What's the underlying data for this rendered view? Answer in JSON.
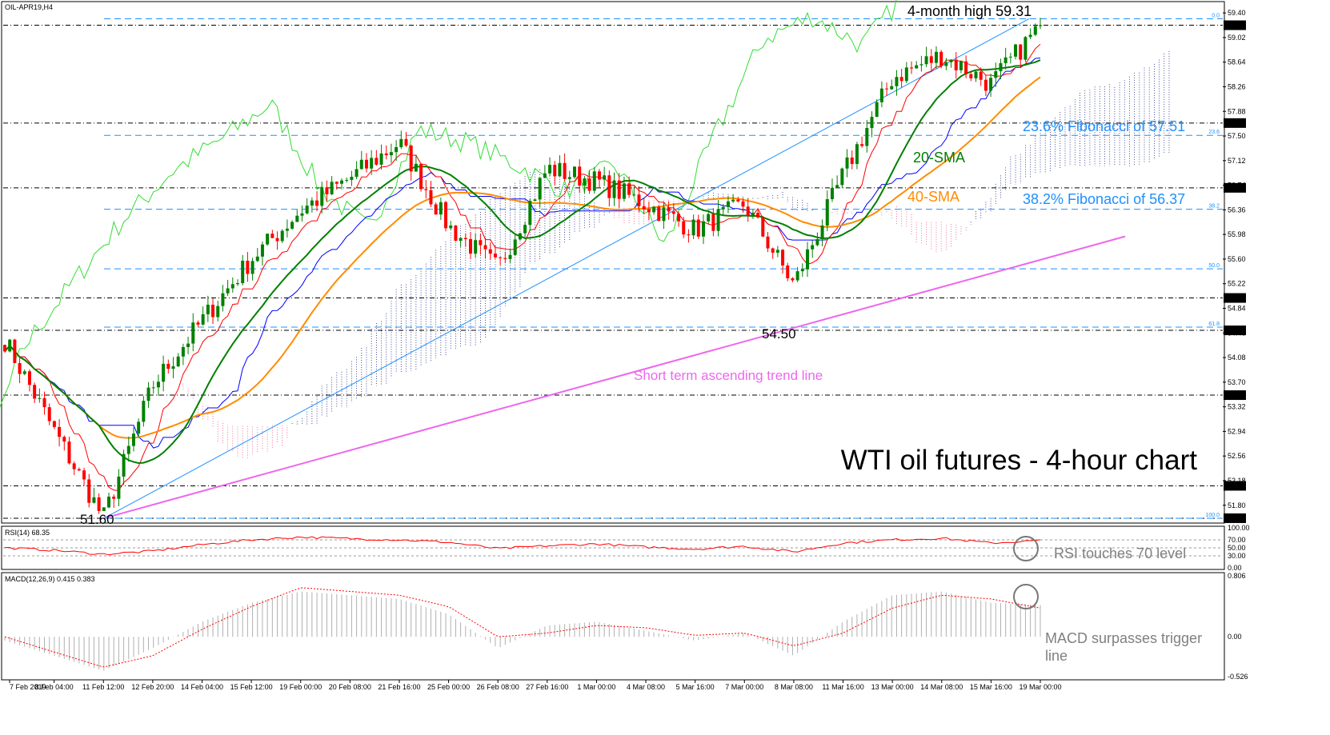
{
  "chart_data": {
    "type": "candlestick",
    "symbol": "OIL-APR19,H4",
    "title": "WTI oil futures - 4-hour chart",
    "y_ticks": [
      "59.40",
      "59.02",
      "58.64",
      "58.26",
      "57.88",
      "57.50",
      "57.12",
      "56.74",
      "56.36",
      "55.98",
      "55.60",
      "55.22",
      "54.84",
      "54.46",
      "54.08",
      "53.70",
      "53.32",
      "52.94",
      "52.56",
      "52.18",
      "51.80"
    ],
    "ylim": [
      51.55,
      59.55
    ],
    "x_ticks": [
      "7 Feb 2019",
      "8 Feb 04:00",
      "11 Feb 12:00",
      "12 Feb 20:00",
      "14 Feb 04:00",
      "15 Feb 12:00",
      "19 Feb 00:00",
      "20 Feb 08:00",
      "21 Feb 16:00",
      "25 Feb 00:00",
      "26 Feb 08:00",
      "27 Feb 16:00",
      "1 Mar 00:00",
      "4 Mar 08:00",
      "5 Mar 16:00",
      "7 Mar 00:00",
      "8 Mar 08:00",
      "11 Mar 16:00",
      "13 Mar 00:00",
      "14 Mar 08:00",
      "15 Mar 16:00",
      "19 Mar 00:00"
    ],
    "highlighted_levels": [
      {
        "value": 59.21,
        "label": "59.21"
      },
      {
        "value": 57.7,
        "label": "57.70"
      },
      {
        "value": 56.7,
        "label": "56.70"
      },
      {
        "value": 55.0,
        "label": "55.00"
      },
      {
        "value": 54.5,
        "label": "54.50"
      },
      {
        "value": 53.5,
        "label": "53.50"
      },
      {
        "value": 52.1,
        "label": "52.10"
      },
      {
        "value": 51.6,
        "label": "51.60"
      }
    ],
    "fibonacci": [
      {
        "level": "0.0",
        "value": 59.31
      },
      {
        "level": "23.6",
        "value": 57.51
      },
      {
        "level": "38.2",
        "value": 56.37
      },
      {
        "level": "50.0",
        "value": 55.45
      },
      {
        "level": "61.8",
        "value": 54.55
      },
      {
        "level": "100.0",
        "value": 51.6
      }
    ],
    "anchors": [
      {
        "date": "7 Feb 2019",
        "close": 54.35
      },
      {
        "date": "8 Feb 04:00",
        "close": 52.95
      },
      {
        "date": "11 Feb 12:00",
        "close": 51.6
      },
      {
        "date": "12 Feb 20:00",
        "close": 53.65
      },
      {
        "date": "14 Feb 04:00",
        "close": 54.65
      },
      {
        "date": "15 Feb 12:00",
        "close": 55.6
      },
      {
        "date": "19 Feb 00:00",
        "close": 56.35
      },
      {
        "date": "20 Feb 08:00",
        "close": 56.85
      },
      {
        "date": "21 Feb 16:00",
        "close": 57.4
      },
      {
        "date": "25 Feb 00:00",
        "close": 56.1
      },
      {
        "date": "26 Feb 08:00",
        "close": 55.45
      },
      {
        "date": "27 Feb 16:00",
        "close": 57.0
      },
      {
        "date": "1 Mar 00:00",
        "close": 56.8
      },
      {
        "date": "4 Mar 08:00",
        "close": 56.45
      },
      {
        "date": "5 Mar 16:00",
        "close": 56.05
      },
      {
        "date": "7 Mar 00:00",
        "close": 56.45
      },
      {
        "date": "8 Mar 08:00",
        "close": 55.2
      },
      {
        "date": "11 Mar 16:00",
        "close": 56.9
      },
      {
        "date": "13 Mar 00:00",
        "close": 58.4
      },
      {
        "date": "14 Mar 08:00",
        "close": 58.75
      },
      {
        "date": "15 Mar 16:00",
        "close": 58.3
      },
      {
        "date": "19 Mar 00:00",
        "close": 59.21
      }
    ],
    "annotations": {
      "high": "4-month high 59.31",
      "low1": "51.60",
      "low2": "54.50",
      "sma20": "20-SMA",
      "sma40": "40-SMA",
      "fib236": "23.6% Fibonacci of 57.51",
      "fib382": "38.2% Fibonacci of 56.37",
      "trend": "Short term ascending trend line",
      "rsi_note": "RSI touches 70 level",
      "macd_note_1": "MACD surpasses trigger",
      "macd_note_2": "line"
    },
    "rsi": {
      "label": "RSI(14) 68.35",
      "ticks": [
        "100.00",
        "70.00",
        "50.00",
        "30.00",
        "0.00"
      ],
      "anchors": [
        50,
        44,
        34,
        42,
        58,
        70,
        77,
        73,
        70,
        64,
        48,
        55,
        60,
        52,
        47,
        54,
        40,
        62,
        70,
        74,
        62,
        68.35
      ]
    },
    "macd": {
      "label": "MACD(12,26,9) 0.415 0.383",
      "ticks": [
        "0.806",
        "0.00",
        "-0.526"
      ],
      "histogram_anchors": [
        -0.05,
        -0.25,
        -0.45,
        -0.15,
        0.2,
        0.45,
        0.6,
        0.55,
        0.5,
        0.3,
        -0.15,
        0.15,
        0.2,
        0.08,
        -0.05,
        0.05,
        -0.25,
        0.2,
        0.55,
        0.6,
        0.45,
        0.42
      ],
      "signal_anchors": [
        0.0,
        -0.2,
        -0.4,
        -0.25,
        0.1,
        0.4,
        0.65,
        0.6,
        0.55,
        0.4,
        0.0,
        0.05,
        0.15,
        0.12,
        0.02,
        0.05,
        -0.12,
        0.05,
        0.38,
        0.55,
        0.5,
        0.38
      ]
    },
    "colors": {
      "bull": "#008000",
      "bear": "#ff0000",
      "sma20": "#008000",
      "sma40": "#ff8c00",
      "tenkan": "#ff0000",
      "kijun": "#0000ff",
      "chikou": "#33dd33",
      "fib": "#1e90ff",
      "trend": "#ee66ee",
      "cloud_up": "#1a237e",
      "cloud_down": "#e75480",
      "rsi": "#ff0000",
      "macd_hist": "#b0b0b0",
      "macd_signal": "#ff0000"
    }
  }
}
